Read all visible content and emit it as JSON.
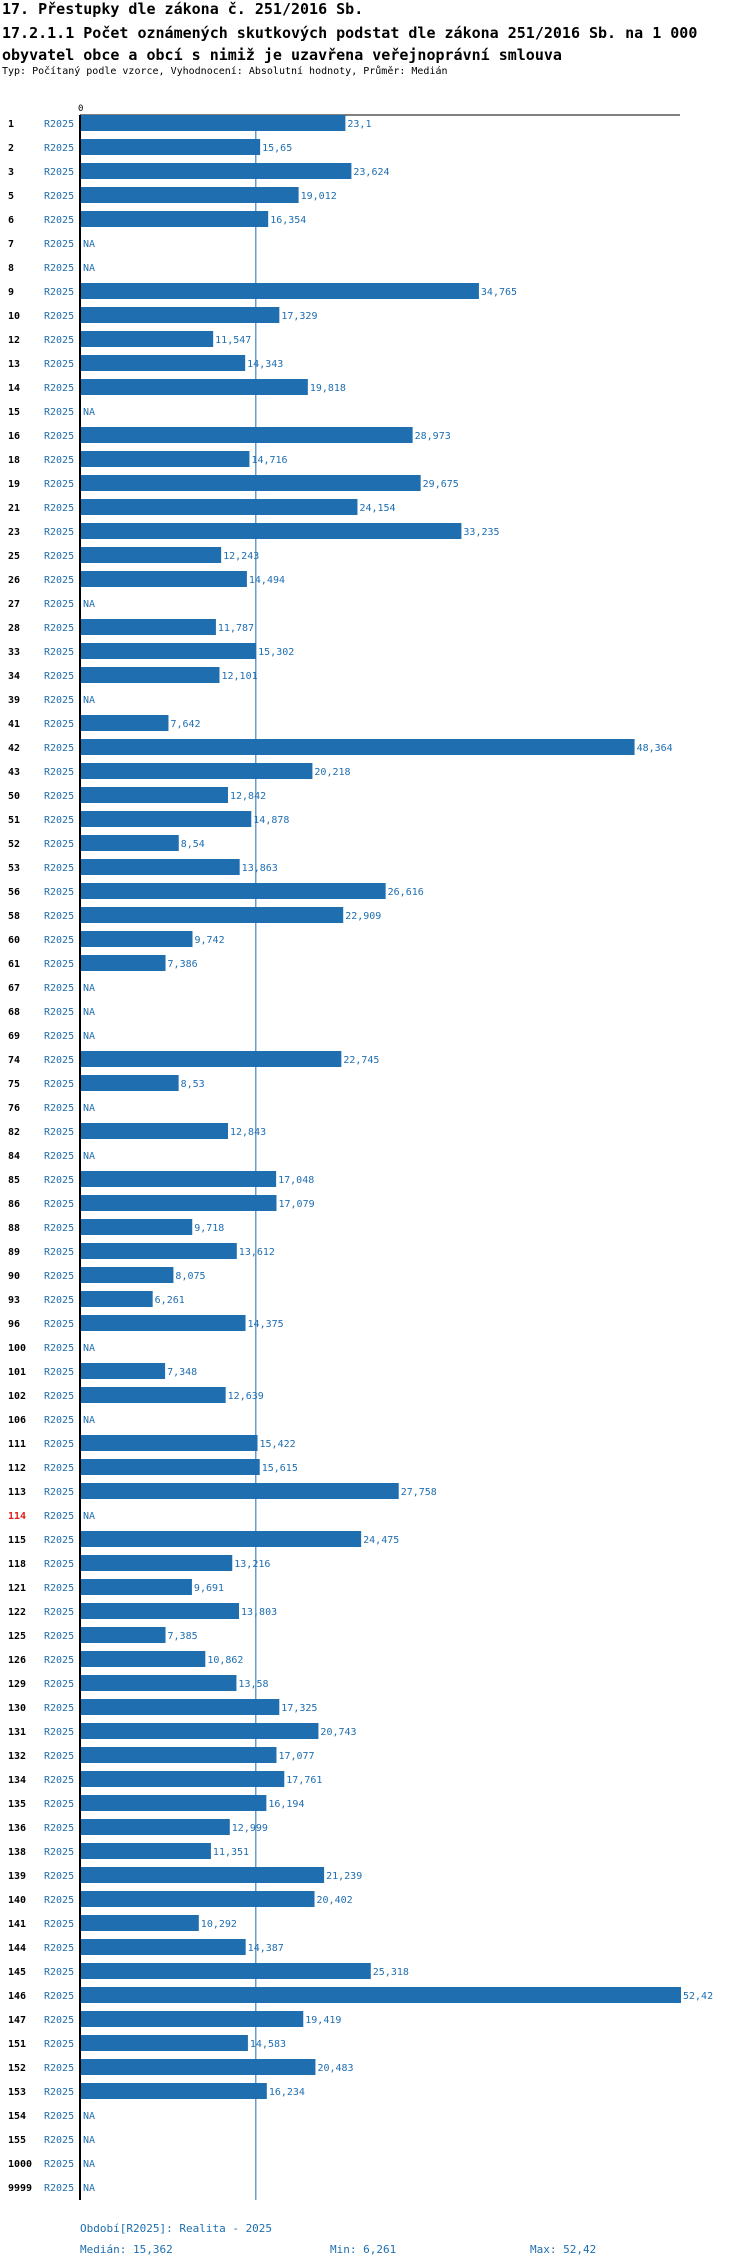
{
  "header": {
    "title": "17. Přestupky dle zákona č. 251/2016 Sb.",
    "subtitle": "17.2.1.1 Počet oznámených skutkových podstat dle zákona 251/2016 Sb. na 1 000 obyvatel obce a obcí s nimiž je uzavřena veřejnoprávní smlouva",
    "meta": "Typ: Počítaný podle vzorce, Vyhodnocení: Absolutní hodnoty, Průměr: Medián"
  },
  "chart_data": {
    "type": "bar",
    "orientation": "horizontal",
    "axis_zero_label": "0",
    "xlim": [
      0,
      52.42
    ],
    "median_line": 15.362,
    "series_label": "R2025",
    "na_label": "NA",
    "bar_color": "#1f6eb0",
    "highlight_color": "#e0201b",
    "categories": [
      "1",
      "2",
      "3",
      "5",
      "6",
      "7",
      "8",
      "9",
      "10",
      "12",
      "13",
      "14",
      "15",
      "16",
      "18",
      "19",
      "21",
      "23",
      "25",
      "26",
      "27",
      "28",
      "33",
      "34",
      "39",
      "41",
      "42",
      "43",
      "50",
      "51",
      "52",
      "53",
      "56",
      "58",
      "60",
      "61",
      "67",
      "68",
      "69",
      "74",
      "75",
      "76",
      "82",
      "84",
      "85",
      "86",
      "88",
      "89",
      "90",
      "93",
      "96",
      "100",
      "101",
      "102",
      "106",
      "111",
      "112",
      "113",
      "114",
      "115",
      "118",
      "121",
      "122",
      "125",
      "126",
      "129",
      "130",
      "131",
      "132",
      "134",
      "135",
      "136",
      "138",
      "139",
      "140",
      "141",
      "144",
      "145",
      "146",
      "147",
      "151",
      "152",
      "153",
      "154",
      "155",
      "1000",
      "9999"
    ],
    "highlight": [
      "114"
    ],
    "values": [
      23.1,
      15.65,
      23.624,
      19.012,
      16.354,
      null,
      null,
      34.765,
      17.329,
      11.547,
      14.343,
      19.818,
      null,
      28.973,
      14.716,
      29.675,
      24.154,
      33.235,
      12.243,
      14.494,
      null,
      11.787,
      15.302,
      12.101,
      null,
      7.642,
      48.364,
      20.218,
      12.842,
      14.878,
      8.54,
      13.863,
      26.616,
      22.909,
      9.742,
      7.386,
      null,
      null,
      null,
      22.745,
      8.53,
      null,
      12.843,
      null,
      17.048,
      17.079,
      9.718,
      13.612,
      8.075,
      6.261,
      14.375,
      null,
      7.348,
      12.639,
      null,
      15.422,
      15.615,
      27.758,
      null,
      24.475,
      13.216,
      9.691,
      13.803,
      7.385,
      10.862,
      13.58,
      17.325,
      20.743,
      17.077,
      17.761,
      16.194,
      12.999,
      11.351,
      21.239,
      20.402,
      10.292,
      14.387,
      25.318,
      52.42,
      19.419,
      14.583,
      20.483,
      16.234,
      null,
      null,
      null,
      null
    ],
    "value_labels": [
      "23,1",
      "15,65",
      "23,624",
      "19,012",
      "16,354",
      "NA",
      "NA",
      "34,765",
      "17,329",
      "11,547",
      "14,343",
      "19,818",
      "NA",
      "28,973",
      "14,716",
      "29,675",
      "24,154",
      "33,235",
      "12,243",
      "14,494",
      "NA",
      "11,787",
      "15,302",
      "12,101",
      "NA",
      "7,642",
      "48,364",
      "20,218",
      "12,842",
      "14,878",
      "8,54",
      "13,863",
      "26,616",
      "22,909",
      "9,742",
      "7,386",
      "NA",
      "NA",
      "NA",
      "22,745",
      "8,53",
      "NA",
      "12,843",
      "NA",
      "17,048",
      "17,079",
      "9,718",
      "13,612",
      "8,075",
      "6,261",
      "14,375",
      "NA",
      "7,348",
      "12,639",
      "NA",
      "15,422",
      "15,615",
      "27,758",
      "NA",
      "24,475",
      "13,216",
      "9,691",
      "13,803",
      "7,385",
      "10,862",
      "13,58",
      "17,325",
      "20,743",
      "17,077",
      "17,761",
      "16,194",
      "12,999",
      "11,351",
      "21,239",
      "20,402",
      "10,292",
      "14,387",
      "25,318",
      "52,42",
      "19,419",
      "14,583",
      "20,483",
      "16,234",
      "NA",
      "NA",
      "NA",
      "NA"
    ]
  },
  "footer": {
    "period": "Období[R2025]: Realita - 2025",
    "median": "Medián: 15,362",
    "min": "Min: 6,261",
    "max": "Max: 52,42"
  }
}
